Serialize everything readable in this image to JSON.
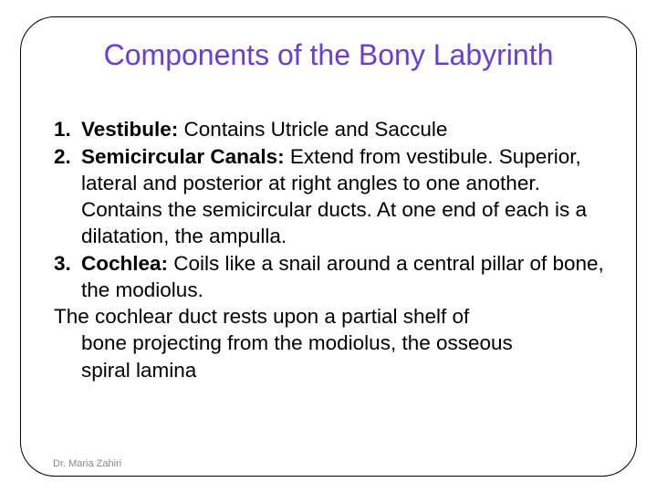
{
  "title": "Components of the Bony Labyrinth",
  "title_color": "#6a3dd4",
  "title_fontsize": 32,
  "body_fontsize": 22.5,
  "body_color": "#000000",
  "background_color": "#ffffff",
  "border_color": "#000000",
  "border_radius": 38,
  "items": [
    {
      "number": "1.",
      "heading": "Vestibule:",
      "text": " Contains Utricle and Saccule"
    },
    {
      "number": "2.",
      "heading": "Semicircular Canals:",
      "text": " Extend from vestibule. Superior, lateral and posterior at right angles to one another. Contains the semicircular ducts. At one end of each is a dilatation, the ampulla."
    },
    {
      "number": "3.",
      "heading": "Cochlea:",
      "text": " Coils like a snail around a central pillar of bone, the modiolus."
    }
  ],
  "paragraph": "The cochlear duct rests upon a partial shelf of bone projecting from the modiolus, the osseous spiral lamina",
  "paragraph_indent_lines": "bone projecting from the modiolus, the osseous spiral lamina",
  "attribution": "Dr. Maria Zahiri",
  "attribution_color": "#888888"
}
